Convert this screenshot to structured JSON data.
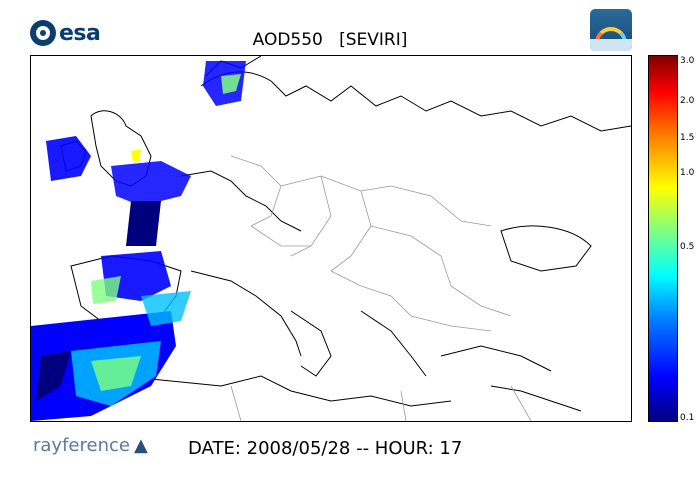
{
  "logos": {
    "esa": "esa",
    "rayference": "rayference",
    "icons": [
      "esa-logo-icon",
      "satellite-rainbow-logo-icon",
      "rayference-cube-icon"
    ]
  },
  "map": {
    "title": "AOD550   [SEVIRI]",
    "region": "Europe and Mediterranean",
    "aod_overlay_colors": [
      "#00007f",
      "#0000ff",
      "#00bfff",
      "#7fff80",
      "#ffff00"
    ]
  },
  "colorbar": {
    "labels": [
      "3.0",
      "2.0",
      "1.5",
      "1.0",
      "0.5",
      "0.1"
    ],
    "colors": [
      "#00007f",
      "#0000ff",
      "#0080ff",
      "#00ffff",
      "#7fff80",
      "#ffff00",
      "#ff8000",
      "#ff0000",
      "#7f0000"
    ]
  },
  "footer": {
    "date_line": "DATE: 2008/05/28 -- HOUR: 17"
  }
}
